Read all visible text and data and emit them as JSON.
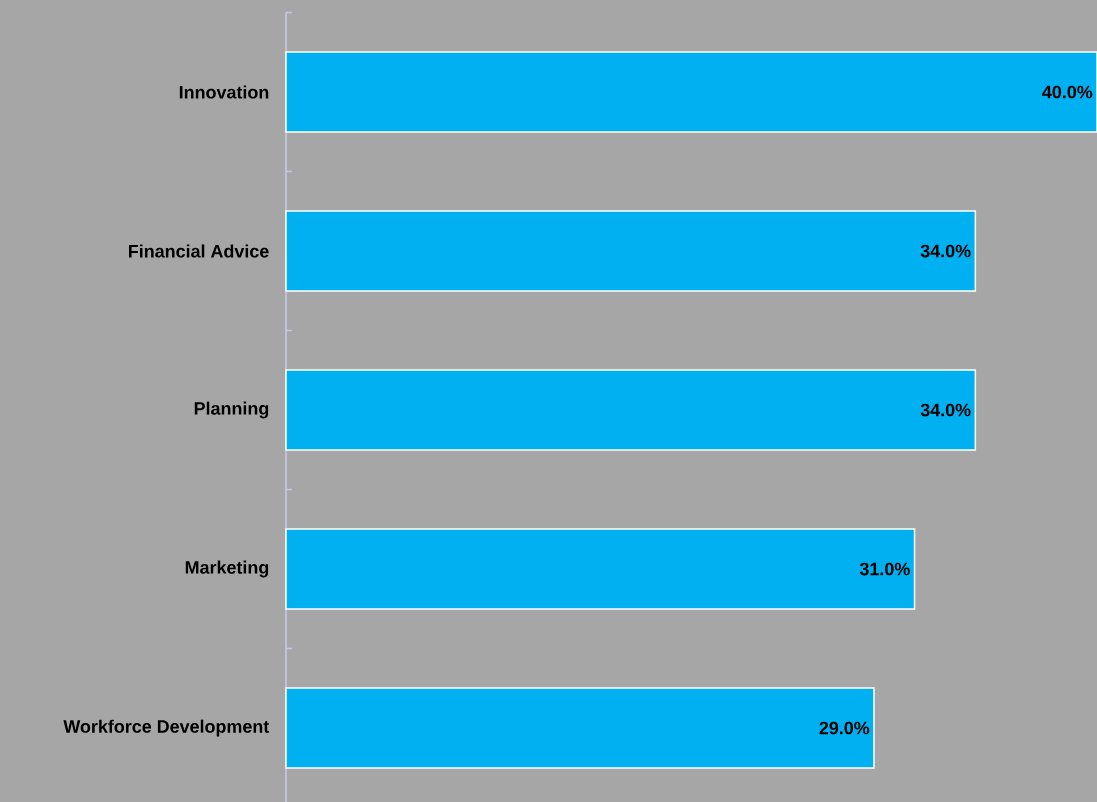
{
  "chart_data": {
    "type": "bar",
    "orientation": "horizontal",
    "categories": [
      "Innovation",
      "Financial Advice",
      "Planning",
      "Marketing",
      "Workforce Development"
    ],
    "values": [
      40,
      34,
      34,
      31,
      29
    ],
    "value_labels": [
      "40.0%",
      "34.0%",
      "34.0%",
      "31.0%",
      "29.0%"
    ],
    "color": "#00b0f0"
  }
}
